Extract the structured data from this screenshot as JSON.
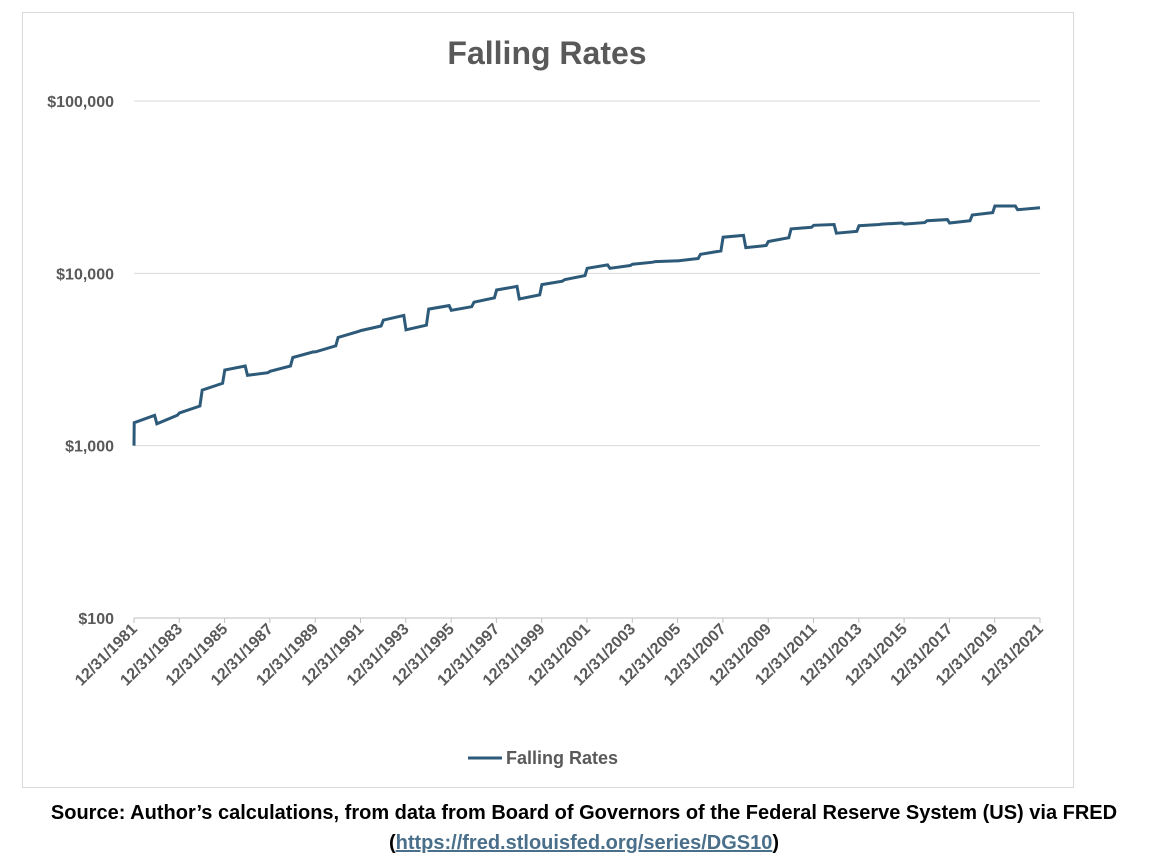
{
  "chart_data": {
    "type": "line",
    "title": "Falling Rates",
    "y_scale": "log",
    "ylim": [
      100,
      100000
    ],
    "y_ticks": [
      {
        "value": 100,
        "label": "$100"
      },
      {
        "value": 1000,
        "label": "$1,000"
      },
      {
        "value": 10000,
        "label": "$10,000"
      },
      {
        "value": 100000,
        "label": "$100,000"
      }
    ],
    "x_ticks": [
      "12/31/1981",
      "12/31/1983",
      "12/31/1985",
      "12/31/1987",
      "12/31/1989",
      "12/31/1991",
      "12/31/1993",
      "12/31/1995",
      "12/31/1997",
      "12/31/1999",
      "12/31/2001",
      "12/31/2003",
      "12/31/2005",
      "12/31/2007",
      "12/31/2009",
      "12/31/2011",
      "12/31/2013",
      "12/31/2015",
      "12/31/2017",
      "12/31/2019",
      "12/31/2021"
    ],
    "xlim": [
      1981.99,
      2021.99
    ],
    "grid": true,
    "legend": "bottom",
    "color": "#2e5a7a",
    "series": [
      {
        "name": "Falling Rates",
        "points": [
          [
            1981.99,
            1000
          ],
          [
            1982.0,
            1360
          ],
          [
            1982.9,
            1500
          ],
          [
            1983.0,
            1340
          ],
          [
            1983.9,
            1500
          ],
          [
            1984.0,
            1550
          ],
          [
            1984.9,
            1700
          ],
          [
            1985.0,
            2100
          ],
          [
            1985.9,
            2300
          ],
          [
            1986.0,
            2750
          ],
          [
            1986.9,
            2900
          ],
          [
            1987.0,
            2560
          ],
          [
            1987.9,
            2650
          ],
          [
            1988.0,
            2700
          ],
          [
            1988.9,
            2900
          ],
          [
            1989.0,
            3250
          ],
          [
            1989.9,
            3500
          ],
          [
            1990.0,
            3500
          ],
          [
            1990.9,
            3800
          ],
          [
            1991.0,
            4250
          ],
          [
            1991.9,
            4600
          ],
          [
            1992.0,
            4650
          ],
          [
            1992.9,
            4950
          ],
          [
            1993.0,
            5350
          ],
          [
            1993.9,
            5700
          ],
          [
            1994.0,
            4700
          ],
          [
            1994.9,
            5000
          ],
          [
            1995.0,
            6200
          ],
          [
            1995.9,
            6500
          ],
          [
            1996.0,
            6100
          ],
          [
            1996.9,
            6400
          ],
          [
            1997.0,
            6800
          ],
          [
            1997.9,
            7200
          ],
          [
            1998.0,
            8000
          ],
          [
            1998.9,
            8400
          ],
          [
            1999.0,
            7100
          ],
          [
            1999.9,
            7500
          ],
          [
            2000.0,
            8600
          ],
          [
            2000.9,
            9000
          ],
          [
            2001.0,
            9200
          ],
          [
            2001.9,
            9700
          ],
          [
            2002.0,
            10700
          ],
          [
            2002.9,
            11200
          ],
          [
            2003.0,
            10700
          ],
          [
            2003.9,
            11100
          ],
          [
            2004.0,
            11300
          ],
          [
            2004.9,
            11600
          ],
          [
            2005.0,
            11700
          ],
          [
            2005.9,
            11800
          ],
          [
            2006.0,
            11800
          ],
          [
            2006.9,
            12200
          ],
          [
            2007.0,
            12900
          ],
          [
            2007.9,
            13500
          ],
          [
            2008.0,
            16200
          ],
          [
            2008.9,
            16600
          ],
          [
            2009.0,
            14100
          ],
          [
            2009.9,
            14500
          ],
          [
            2010.0,
            15300
          ],
          [
            2010.9,
            16100
          ],
          [
            2011.0,
            18100
          ],
          [
            2011.9,
            18500
          ],
          [
            2012.0,
            19000
          ],
          [
            2012.9,
            19200
          ],
          [
            2013.0,
            17100
          ],
          [
            2013.9,
            17500
          ],
          [
            2014.0,
            18900
          ],
          [
            2014.9,
            19200
          ],
          [
            2015.0,
            19300
          ],
          [
            2015.9,
            19600
          ],
          [
            2016.0,
            19300
          ],
          [
            2016.9,
            19700
          ],
          [
            2017.0,
            20200
          ],
          [
            2017.9,
            20500
          ],
          [
            2018.0,
            19600
          ],
          [
            2018.9,
            20200
          ],
          [
            2019.0,
            21800
          ],
          [
            2019.9,
            22500
          ],
          [
            2020.0,
            24600
          ],
          [
            2020.9,
            24600
          ],
          [
            2021.0,
            23400
          ],
          [
            2021.99,
            24000
          ]
        ]
      }
    ]
  },
  "source": {
    "text": "Source: Author’s calculations, from data from Board of Governors of the Federal Reserve System (US) via FRED (",
    "link": "https://fred.stlouisfed.org/series/DGS10",
    "suffix": ")"
  }
}
